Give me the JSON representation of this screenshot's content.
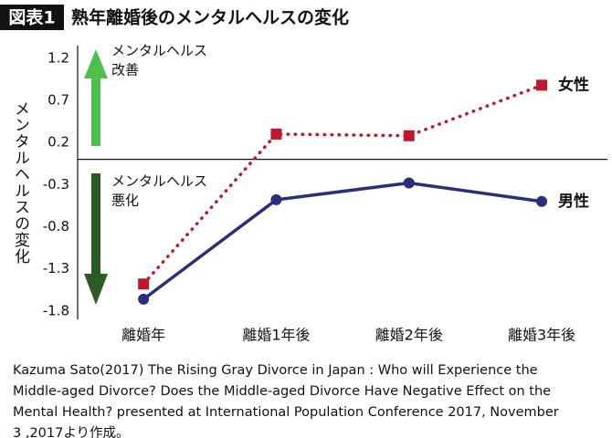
{
  "chart_data": {
    "type": "line",
    "badge": "図表1",
    "title": "熟年離婚後のメンタルヘルスの変化",
    "y_label": "メンタルヘルスの変化",
    "categories": [
      "離婚年",
      "離婚1年後",
      "離婚2年後",
      "離婚3年後"
    ],
    "series": [
      {
        "name": "女性",
        "color": "#c0182b",
        "style": "dotted",
        "marker": "square",
        "values": [
          -1.48,
          0.3,
          0.28,
          0.88
        ]
      },
      {
        "name": "男性",
        "color": "#2b2f7a",
        "style": "solid",
        "marker": "circle",
        "values": [
          -1.66,
          -0.48,
          -0.28,
          -0.5
        ]
      }
    ],
    "ylim": [
      -1.9,
      1.35
    ],
    "yticks": [
      1.2,
      0.7,
      0.2,
      -0.3,
      -0.8,
      -1.3,
      -1.8
    ],
    "hline": 0,
    "annotations": [
      {
        "lines": [
          "メンタルヘルス",
          "改善"
        ]
      },
      {
        "lines": [
          "メンタルヘルス",
          "悪化"
        ]
      }
    ],
    "source": [
      "Kazuma Sato(2017) The Rising Gray Divorce in Japan : Who will Experience the",
      "Middle-aged Divorce? Does the Middle-aged Divorce Have Negative Effect on the",
      "Mental Health? presented at International Population Conference 2017, November",
      "3 ,2017より作成。"
    ]
  }
}
